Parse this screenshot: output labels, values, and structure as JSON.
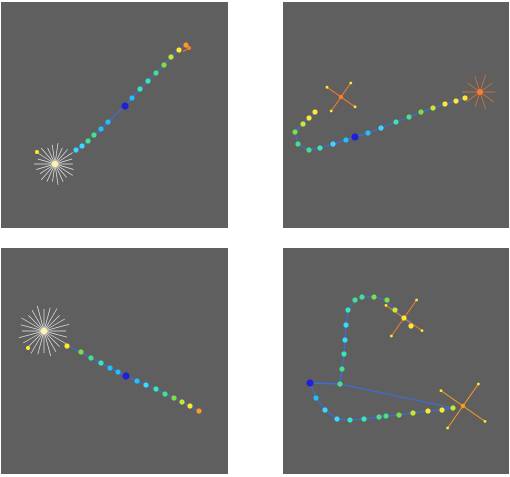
{
  "panels": [
    {
      "id": "p1",
      "path_color": "#3a6fe0",
      "dots": [
        {
          "color": "#3fd7ff"
        },
        {
          "color": "#3fd7ff"
        },
        {
          "color": "#46e08c"
        },
        {
          "color": "#46e08c"
        },
        {
          "color": "#22bfff"
        },
        {
          "color": "#22bfff"
        },
        {
          "color": "#2020d8"
        },
        {
          "color": "#22bfff"
        },
        {
          "color": "#38e6b8"
        },
        {
          "color": "#38e6b8"
        },
        {
          "color": "#46e08c"
        },
        {
          "color": "#78e048"
        },
        {
          "color": "#c8e830"
        },
        {
          "color": "#ffe830"
        },
        {
          "color": "#ff9a20"
        }
      ],
      "markers": [
        {
          "type": "star",
          "color": "#ffffff",
          "core": "#fff6a0"
        },
        {
          "type": "tick",
          "color": "#ff7a2a"
        },
        {
          "type": "tick",
          "color": "#ffe830"
        }
      ]
    },
    {
      "id": "p2",
      "path_color": "#3a6fe0",
      "dots": [
        {
          "color": "#ffe830"
        },
        {
          "color": "#ffe830"
        },
        {
          "color": "#c8e830"
        },
        {
          "color": "#78e048"
        },
        {
          "color": "#46e08c"
        },
        {
          "color": "#46e08c"
        },
        {
          "color": "#38e6b8"
        },
        {
          "color": "#3fd7ff"
        },
        {
          "color": "#22bfff"
        },
        {
          "color": "#2020d8"
        },
        {
          "color": "#22bfff"
        },
        {
          "color": "#3fd7ff"
        },
        {
          "color": "#38e6b8"
        },
        {
          "color": "#46e08c"
        },
        {
          "color": "#78e048"
        },
        {
          "color": "#c8e830"
        },
        {
          "color": "#ffe830"
        },
        {
          "color": "#ffe830"
        },
        {
          "color": "#ffe830"
        }
      ],
      "markers": [
        {
          "type": "cross",
          "color": "#ff7a2a"
        },
        {
          "type": "star",
          "color": "#ff7a2a"
        }
      ]
    },
    {
      "id": "p3",
      "path_color": "#3a6fe0",
      "dots": [
        {
          "color": "#ffe830"
        },
        {
          "color": "#78e048"
        },
        {
          "color": "#46e08c"
        },
        {
          "color": "#38e6b8"
        },
        {
          "color": "#22bfff"
        },
        {
          "color": "#22bfff"
        },
        {
          "color": "#2020d8"
        },
        {
          "color": "#22bfff"
        },
        {
          "color": "#3fd7ff"
        },
        {
          "color": "#38e6b8"
        },
        {
          "color": "#46e08c"
        },
        {
          "color": "#78e048"
        },
        {
          "color": "#c8e830"
        },
        {
          "color": "#ffe830"
        },
        {
          "color": "#ff9a20"
        }
      ],
      "markers": [
        {
          "type": "star",
          "color": "#ffffff",
          "core": "#fff6a0"
        },
        {
          "type": "tick",
          "color": "#ffe830"
        }
      ]
    },
    {
      "id": "p4",
      "path_color": "#3a6fe0",
      "dots": [
        {
          "color": "#2020d8"
        },
        {
          "color": "#22bfff"
        },
        {
          "color": "#3fd7ff"
        },
        {
          "color": "#3fd7ff"
        },
        {
          "color": "#38e6b8"
        },
        {
          "color": "#38e6b8"
        },
        {
          "color": "#46e08c"
        },
        {
          "color": "#46e08c"
        },
        {
          "color": "#78e048"
        },
        {
          "color": "#c8e830"
        },
        {
          "color": "#ffe830"
        },
        {
          "color": "#ffe830"
        },
        {
          "color": "#c8e830"
        },
        {
          "color": "#46e08c"
        },
        {
          "color": "#46e08c"
        },
        {
          "color": "#38e6b8"
        },
        {
          "color": "#3fd7ff"
        },
        {
          "color": "#3fd7ff"
        },
        {
          "color": "#38e6b8"
        },
        {
          "color": "#46e08c"
        },
        {
          "color": "#46e08c"
        },
        {
          "color": "#78e048"
        },
        {
          "color": "#78e048"
        },
        {
          "color": "#c8e830"
        },
        {
          "color": "#ffe830"
        },
        {
          "color": "#ffe830"
        }
      ],
      "markers": [
        {
          "type": "cross",
          "color": "#ff7a2a"
        },
        {
          "type": "cross",
          "color": "#ff9a20"
        }
      ]
    }
  ]
}
